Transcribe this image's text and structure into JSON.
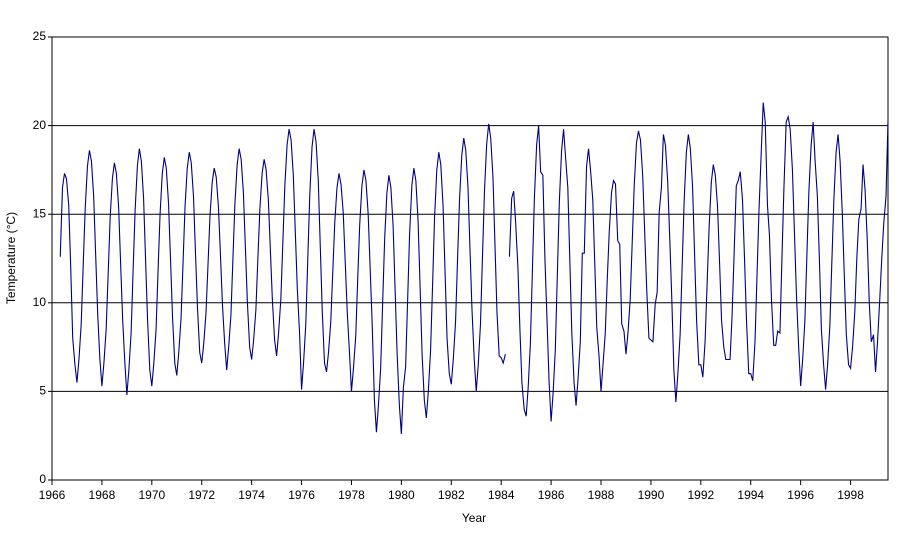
{
  "chart_data": {
    "type": "line",
    "x_label": "Year",
    "y_label": "Temperature (°C)",
    "color": "#000080",
    "grid": true,
    "xlim": [
      1966,
      1999.5
    ],
    "xticks": [
      1966,
      1968,
      1970,
      1972,
      1974,
      1976,
      1978,
      1980,
      1982,
      1984,
      1986,
      1988,
      1990,
      1992,
      1994,
      1996,
      1998
    ],
    "ylim": [
      0,
      25
    ],
    "yticks": [
      0,
      5,
      10,
      15,
      20,
      25
    ],
    "x": [
      1966.33,
      1966.42,
      1966.5,
      1966.58,
      1966.67,
      1966.75,
      1966.83,
      1966.92,
      1967,
      1967.08,
      1967.17,
      1967.25,
      1967.33,
      1967.42,
      1967.5,
      1967.58,
      1967.67,
      1967.75,
      1967.83,
      1967.92,
      1968,
      1968.08,
      1968.17,
      1968.25,
      1968.33,
      1968.42,
      1968.5,
      1968.58,
      1968.67,
      1968.75,
      1968.83,
      1968.92,
      1969,
      1969.08,
      1969.17,
      1969.25,
      1969.33,
      1969.42,
      1969.5,
      1969.58,
      1969.67,
      1969.75,
      1969.83,
      1969.92,
      1970,
      1970.08,
      1970.17,
      1970.25,
      1970.33,
      1970.42,
      1970.5,
      1970.58,
      1970.67,
      1970.75,
      1970.83,
      1970.92,
      1971,
      1971.08,
      1971.17,
      1971.25,
      1971.33,
      1971.42,
      1971.5,
      1971.58,
      1971.67,
      1971.75,
      1971.83,
      1971.92,
      1972,
      1972.08,
      1972.17,
      1972.25,
      1972.33,
      1972.42,
      1972.5,
      1972.58,
      1972.67,
      1972.75,
      1972.83,
      1972.92,
      1973,
      1973.08,
      1973.17,
      1973.25,
      1973.33,
      1973.42,
      1973.5,
      1973.58,
      1973.67,
      1973.75,
      1973.83,
      1973.92,
      1974,
      1974.08,
      1974.17,
      1974.25,
      1974.33,
      1974.42,
      1974.5,
      1974.58,
      1974.67,
      1974.75,
      1974.83,
      1974.92,
      1975,
      1975.08,
      1975.17,
      1975.25,
      1975.33,
      1975.42,
      1975.5,
      1975.58,
      1975.67,
      1975.75,
      1975.83,
      1975.92,
      1976,
      1976.08,
      1976.17,
      1976.25,
      1976.33,
      1976.42,
      1976.5,
      1976.58,
      1976.67,
      1976.75,
      1976.83,
      1976.92,
      1977,
      1977.08,
      1977.17,
      1977.25,
      1977.33,
      1977.42,
      1977.5,
      1977.58,
      1977.67,
      1977.75,
      1977.83,
      1977.92,
      1978,
      1978.08,
      1978.17,
      1978.25,
      1978.33,
      1978.42,
      1978.5,
      1978.58,
      1978.67,
      1978.75,
      1978.83,
      1978.92,
      1979,
      1979.08,
      1979.17,
      1979.25,
      1979.33,
      1979.42,
      1979.5,
      1979.58,
      1979.67,
      1979.75,
      1979.83,
      1979.92,
      1980,
      1980.08,
      1980.17,
      1980.25,
      1980.33,
      1980.42,
      1980.5,
      1980.58,
      1980.67,
      1980.75,
      1980.83,
      1980.92,
      1981,
      1981.08,
      1981.17,
      1981.25,
      1981.33,
      1981.42,
      1981.5,
      1981.58,
      1981.67,
      1981.75,
      1981.83,
      1981.92,
      1982,
      1982.08,
      1982.17,
      1982.25,
      1982.33,
      1982.42,
      1982.5,
      1982.58,
      1982.67,
      1982.75,
      1982.83,
      1982.92,
      1983,
      1983.08,
      1983.17,
      1983.25,
      1983.33,
      1983.42,
      1983.5,
      1983.58,
      1983.67,
      1983.75,
      1983.83,
      1983.92,
      1984,
      1984.08,
      1984.17,
      1984.25,
      1984.33,
      1984.42,
      1984.5,
      1984.58,
      1984.67,
      1984.75,
      1984.83,
      1984.92,
      1985,
      1985.08,
      1985.17,
      1985.25,
      1985.33,
      1985.42,
      1985.5,
      1985.58,
      1985.67,
      1985.75,
      1985.83,
      1985.92,
      1986,
      1986.08,
      1986.17,
      1986.25,
      1986.33,
      1986.42,
      1986.5,
      1986.58,
      1986.67,
      1986.75,
      1986.83,
      1986.92,
      1987,
      1987.08,
      1987.17,
      1987.25,
      1987.33,
      1987.42,
      1987.5,
      1987.58,
      1987.67,
      1987.75,
      1987.83,
      1987.92,
      1988,
      1988.08,
      1988.17,
      1988.25,
      1988.33,
      1988.42,
      1988.5,
      1988.58,
      1988.67,
      1988.75,
      1988.83,
      1988.92,
      1989,
      1989.08,
      1989.17,
      1989.25,
      1989.33,
      1989.42,
      1989.5,
      1989.58,
      1989.67,
      1989.75,
      1989.83,
      1989.92,
      1990,
      1990.08,
      1990.17,
      1990.25,
      1990.33,
      1990.42,
      1990.5,
      1990.58,
      1990.67,
      1990.75,
      1990.83,
      1990.92,
      1991,
      1991.08,
      1991.17,
      1991.25,
      1991.33,
      1991.42,
      1991.5,
      1991.58,
      1991.67,
      1991.75,
      1991.83,
      1991.92,
      1992,
      1992.08,
      1992.17,
      1992.25,
      1992.33,
      1992.42,
      1992.5,
      1992.58,
      1992.67,
      1992.75,
      1992.83,
      1992.92,
      1993,
      1993.08,
      1993.17,
      1993.25,
      1993.33,
      1993.42,
      1993.5,
      1993.58,
      1993.67,
      1993.75,
      1993.83,
      1993.92,
      1994,
      1994.08,
      1994.17,
      1994.25,
      1994.33,
      1994.42,
      1994.5,
      1994.58,
      1994.67,
      1994.75,
      1994.83,
      1994.92,
      1995,
      1995.08,
      1995.17,
      1995.25,
      1995.33,
      1995.42,
      1995.5,
      1995.58,
      1995.67,
      1995.75,
      1995.83,
      1995.92,
      1996,
      1996.08,
      1996.17,
      1996.25,
      1996.33,
      1996.42,
      1996.5,
      1996.58,
      1996.67,
      1996.75,
      1996.83,
      1996.92,
      1997,
      1997.08,
      1997.17,
      1997.25,
      1997.33,
      1997.42,
      1997.5,
      1997.58,
      1997.67,
      1997.75,
      1997.83,
      1997.92,
      1998,
      1998.08,
      1998.17,
      1998.25,
      1998.33,
      1998.42,
      1998.5,
      1998.58,
      1998.67,
      1998.75,
      1998.83,
      1998.92,
      1999,
      1999.08,
      1999.17,
      1999.25,
      1999.33,
      1999.42,
      1999.5
    ],
    "values": [
      12.6,
      16.5,
      17.3,
      17.0,
      15.5,
      12.0,
      8.0,
      6.5,
      5.5,
      6.8,
      8.8,
      12.1,
      15.3,
      17.7,
      18.6,
      18.0,
      16.0,
      12.7,
      9.4,
      6.8,
      5.3,
      6.6,
      8.5,
      11.6,
      14.8,
      17.0,
      17.9,
      17.3,
      15.4,
      12.2,
      9.1,
      6.6,
      4.8,
      6.2,
      8.3,
      11.8,
      15.2,
      17.7,
      18.7,
      18.0,
      15.9,
      12.4,
      9.0,
      6.2,
      5.3,
      6.6,
      8.5,
      11.8,
      15.0,
      17.3,
      18.2,
      17.6,
      15.6,
      12.4,
      9.2,
      6.6,
      5.9,
      7.2,
      9.1,
      12.2,
      15.4,
      17.6,
      18.5,
      17.9,
      16.0,
      12.8,
      9.7,
      7.2,
      6.6,
      7.7,
      9.4,
      12.1,
      14.9,
      16.8,
      17.6,
      17.1,
      15.4,
      12.7,
      9.9,
      7.7,
      6.2,
      7.5,
      9.3,
      12.5,
      15.6,
      17.8,
      18.7,
      18.1,
      16.2,
      13.1,
      10.0,
      7.5,
      6.8,
      7.9,
      9.6,
      12.5,
      15.3,
      17.3,
      18.1,
      17.5,
      15.8,
      13.0,
      10.2,
      7.9,
      7.0,
      8.3,
      10.2,
      13.4,
      16.6,
      18.9,
      19.8,
      19.2,
      17.2,
      14.0,
      10.8,
      8.3,
      5.1,
      6.6,
      8.8,
      12.5,
      16.1,
      18.8,
      19.8,
      19.1,
      16.9,
      13.2,
      9.5,
      6.6,
      6.1,
      7.2,
      8.9,
      11.7,
      14.5,
      16.5,
      17.3,
      16.7,
      15.1,
      12.3,
      9.5,
      7.2,
      5.0,
      6.3,
      8.1,
      11.3,
      14.4,
      16.6,
      17.5,
      16.9,
      15.0,
      11.9,
      8.8,
      4.5,
      2.7,
      4.2,
      6.3,
      10.0,
      13.6,
      16.2,
      17.2,
      16.5,
      14.3,
      10.7,
      7.1,
      4.2,
      2.6,
      5.2,
      6.4,
      10.1,
      13.9,
      16.6,
      17.6,
      16.9,
      14.6,
      10.9,
      7.1,
      4.5,
      3.5,
      5.0,
      7.3,
      11.0,
      14.8,
      17.5,
      18.5,
      17.8,
      15.5,
      11.8,
      8.0,
      6.0,
      5.4,
      6.8,
      8.9,
      12.4,
      15.8,
      18.3,
      19.3,
      18.6,
      16.5,
      13.0,
      9.6,
      6.8,
      5.0,
      6.5,
      8.8,
      12.6,
      16.3,
      19.0,
      20.1,
      19.3,
      17.1,
      13.3,
      9.5,
      7.0,
      6.9,
      6.6,
      7.1,
      null,
      12.6,
      15.9,
      16.3,
      14.5,
      12.0,
      8.5,
      5.5,
      4.0,
      3.6,
      5.2,
      7.7,
      11.8,
      15.9,
      18.9,
      20.0,
      17.4,
      17.2,
      12.6,
      9.3,
      5.5,
      3.3,
      4.9,
      7.4,
      11.6,
      15.7,
      18.6,
      19.8,
      18.2,
      16.5,
      12.4,
      8.3,
      5.5,
      4.2,
      5.7,
      7.8,
      12.8,
      12.8,
      17.7,
      18.7,
      17.5,
      15.8,
      12.2,
      8.6,
      7.0,
      5.0,
      6.5,
      8.3,
      11.3,
      14.0,
      16.2,
      16.9,
      16.7,
      13.5,
      13.3,
      8.8,
      8.4,
      7.1,
      8.3,
      10.2,
      13.4,
      16.6,
      19.0,
      19.7,
      19.2,
      17.2,
      14.0,
      10.8,
      8.0,
      7.9,
      7.8,
      9.9,
      10.6,
      15.1,
      16.5,
      19.5,
      18.9,
      16.9,
      13.8,
      10.5,
      6.2,
      4.4,
      6.0,
      8.2,
      12.0,
      15.7,
      18.5,
      19.5,
      18.7,
      16.5,
      12.7,
      9.0,
      6.5,
      6.5,
      5.8,
      7.8,
      11.0,
      14.2,
      16.8,
      17.8,
      17.2,
      15.4,
      12.3,
      9.0,
      7.5,
      6.8,
      6.8,
      6.8,
      9.2,
      12.6,
      16.6,
      16.9,
      17.4,
      15.8,
      12.5,
      9.0,
      6.0,
      6.0,
      5.6,
      7.8,
      11.5,
      15.2,
      18.5,
      21.3,
      20.2,
      15.5,
      13.8,
      10.2,
      7.6,
      7.6,
      8.4,
      8.3,
      12.5,
      16.5,
      20.2,
      20.5,
      19.8,
      17.5,
      14.0,
      10.5,
      7.5,
      5.3,
      6.8,
      9.0,
      12.7,
      16.3,
      18.9,
      20.2,
      18.0,
      16.0,
      12.5,
      8.5,
      6.5,
      5.1,
      6.5,
      8.7,
      12.3,
      15.8,
      18.5,
      19.5,
      18.0,
      15.0,
      11.5,
      8.2,
      6.5,
      6.3,
      7.5,
      9.5,
      12.5,
      14.7,
      15.3,
      17.8,
      16.4,
      13.5,
      10.0,
      7.8,
      8.2,
      6.1,
      7.8,
      10.2,
      12.5,
      14.5,
      16.0,
      20.3
    ]
  }
}
